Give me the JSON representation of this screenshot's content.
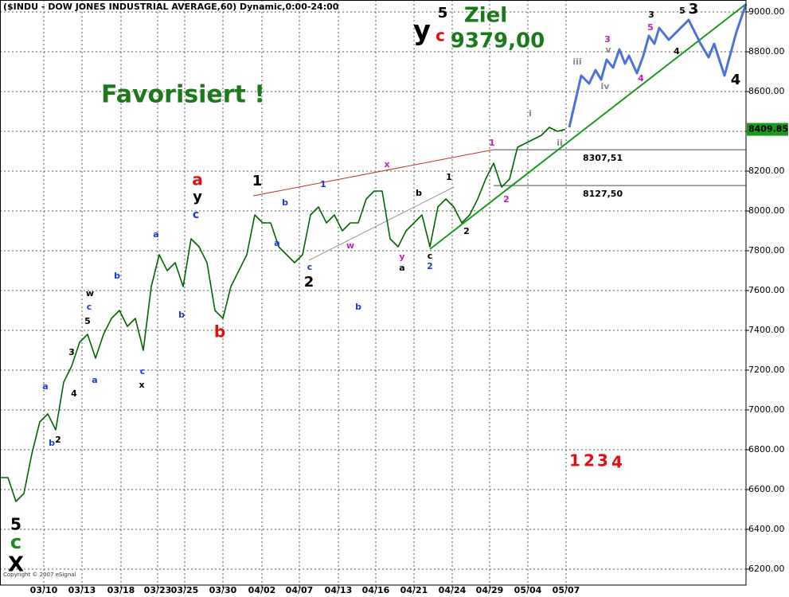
{
  "chart_data": {
    "type": "line",
    "title": "($INDU - DOW JONES INDUSTRIAL AVERAGE,60) Dynamic,0:00-24:00",
    "copyright": "Copyright © 2007 eSignal",
    "xlim": [
      0,
      93.7
    ],
    "ylim": [
      6120,
      9060
    ],
    "xticks": [
      {
        "value": 5.5,
        "label": "03/10"
      },
      {
        "value": 10.3,
        "label": "03/13"
      },
      {
        "value": 15.2,
        "label": "03/18"
      },
      {
        "value": 19.8,
        "label": "03/23"
      },
      {
        "value": 23.2,
        "label": "03/25"
      },
      {
        "value": 28,
        "label": "03/30"
      },
      {
        "value": 32.9,
        "label": "04/02"
      },
      {
        "value": 37.6,
        "label": "04/07"
      },
      {
        "value": 42.5,
        "label": "04/13"
      },
      {
        "value": 47.2,
        "label": "04/16"
      },
      {
        "value": 52,
        "label": "04/21"
      },
      {
        "value": 56.8,
        "label": "04/24"
      },
      {
        "value": 61.5,
        "label": "04/29"
      },
      {
        "value": 66.3,
        "label": "05/04"
      },
      {
        "value": 71.1,
        "label": "05/07"
      }
    ],
    "yticks": [
      {
        "value": 6200,
        "label": "6200.00"
      },
      {
        "value": 6400,
        "label": "6400.00"
      },
      {
        "value": 6600,
        "label": "6600.00"
      },
      {
        "value": 6800,
        "label": "6800.00"
      },
      {
        "value": 7000,
        "label": "7000.00"
      },
      {
        "value": 7200,
        "label": "7200.00"
      },
      {
        "value": 7400,
        "label": "7400.00"
      },
      {
        "value": 7600,
        "label": "7600.00"
      },
      {
        "value": 7800,
        "label": "7800.00"
      },
      {
        "value": 8000,
        "label": "8000.00"
      },
      {
        "value": 8200,
        "label": "8200.00"
      },
      {
        "value": 8400,
        "label": "8400.00"
      },
      {
        "value": 8600,
        "label": "8600.00"
      },
      {
        "value": 8800,
        "label": "8800.00"
      },
      {
        "value": 9000,
        "label": "9000.00"
      }
    ],
    "grid": true,
    "series": [
      {
        "color": "#006400",
        "values": [
          6660,
          6660,
          6540,
          6580,
          6780,
          6940,
          6980,
          6900,
          7140,
          7220,
          7340,
          7380,
          7260,
          7380,
          7460,
          7500,
          7420,
          7460,
          7300,
          7620,
          7780,
          7700,
          7740,
          7620,
          7860,
          7820,
          7740,
          7500,
          7460,
          7620,
          7700,
          7780,
          7980,
          7940,
          7940,
          7820,
          7780,
          7740,
          7780,
          7980,
          8020,
          7940,
          7980,
          7900,
          7940,
          7940,
          8060,
          8100,
          8100,
          7860,
          7820,
          7900,
          7940,
          7980,
          7820,
          8020,
          8060,
          8020,
          7940,
          7980,
          8060,
          8160,
          8240,
          8120,
          8160,
          8320,
          8340,
          8360,
          8380,
          8420,
          8400,
          8409.85
        ]
      },
      {
        "color": "#4a72d8",
        "x": [
          71.5,
          73,
          74,
          74.8,
          75.5,
          76.2,
          77,
          77.8,
          78.5,
          79,
          80,
          80.8,
          81.5,
          82.2,
          82.8,
          84,
          85.5,
          86.5,
          88,
          89,
          89.7,
          91,
          92.5,
          93.7
        ],
        "values": [
          8420,
          8680,
          8640,
          8708,
          8660,
          8760,
          8720,
          8812,
          8740,
          8780,
          8692,
          8780,
          8880,
          8840,
          8920,
          8860,
          8920,
          8960,
          8840,
          8772,
          8840,
          8680,
          8900,
          9040
        ]
      }
    ],
    "levels": [
      {
        "value": 8307.51,
        "label": "8307,51",
        "from": 62
      },
      {
        "value": 8127.5,
        "label": "8127,50",
        "from": 62
      }
    ],
    "trendlines": [
      {
        "color": "#1a9a1a",
        "x": [
          54,
          93.7
        ],
        "y": [
          7808,
          9040
        ]
      },
      {
        "color": "#c03030",
        "x": [
          31.8,
          62
        ],
        "y": [
          8076,
          8308
        ]
      },
      {
        "color": "#999999",
        "x": [
          38.8,
          57
        ],
        "y": [
          7752,
          8120
        ]
      }
    ],
    "annotations": [
      {
        "text": "Favorisiert !",
        "x": 23,
        "y": 8580,
        "color": "#1a7a1a"
      },
      {
        "text": "Ziel",
        "x": 61,
        "y": 8980,
        "color": "#1a7a1a"
      },
      {
        "text": "9379,00",
        "x": 62.5,
        "y": 8852,
        "color": "#1a7a1a"
      },
      {
        "text": "y",
        "x": 53,
        "y": 8900,
        "color": "#000000"
      },
      {
        "text": "5",
        "x": 55.6,
        "y": 8992,
        "color": "#000000"
      },
      {
        "text": "c",
        "x": 55.3,
        "y": 8876,
        "color": "#e01010"
      },
      {
        "text": "5",
        "x": 2,
        "y": 6420,
        "color": "#000000"
      },
      {
        "text": "c",
        "x": 2,
        "y": 6332,
        "color": "#1a8a1a"
      },
      {
        "text": "X",
        "x": 2,
        "y": 6220,
        "color": "#000000"
      },
      {
        "text": "a",
        "x": 24.8,
        "y": 8152,
        "color": "#e01010"
      },
      {
        "text": "y",
        "x": 24.8,
        "y": 8068,
        "color": "#000000"
      },
      {
        "text": "c",
        "x": 24.6,
        "y": 7980,
        "color": "#1a3ad8"
      },
      {
        "text": "b",
        "x": 27.6,
        "y": 7388,
        "color": "#e01010"
      },
      {
        "text": "1",
        "x": 32.3,
        "y": 8148,
        "color": "#000000"
      },
      {
        "text": "2",
        "x": 38.8,
        "y": 7640,
        "color": "#000000"
      },
      {
        "text": "3",
        "x": 87.1,
        "y": 9012,
        "color": "#000000"
      },
      {
        "text": "4",
        "x": 92.4,
        "y": 8656,
        "color": "#000000"
      },
      {
        "text": "1",
        "x": 72.2,
        "y": 6740,
        "color": "#e01010"
      },
      {
        "text": "2",
        "x": 74,
        "y": 6740,
        "color": "#e01010"
      },
      {
        "text": "3",
        "x": 75.7,
        "y": 6740,
        "color": "#e01010"
      },
      {
        "text": "4",
        "x": 77.5,
        "y": 6732,
        "color": "#e01010"
      },
      {
        "text": "w",
        "x": 11.3,
        "y": 7584,
        "color": "#000000"
      },
      {
        "text": "c",
        "x": 11.2,
        "y": 7516,
        "color": "#1a3ad8"
      },
      {
        "text": "5",
        "x": 11,
        "y": 7444,
        "color": "#000000"
      },
      {
        "text": "x",
        "x": 17.8,
        "y": 7124,
        "color": "#000000"
      },
      {
        "text": "c",
        "x": 17.9,
        "y": 7192,
        "color": "#1a3ad8"
      },
      {
        "text": "b",
        "x": 14.7,
        "y": 7672,
        "color": "#1a3ad8"
      },
      {
        "text": "a",
        "x": 5.7,
        "y": 7116,
        "color": "#1a3ad8"
      },
      {
        "text": "b",
        "x": 6.5,
        "y": 6832,
        "color": "#1a3ad8"
      },
      {
        "text": "2",
        "x": 7.3,
        "y": 6848,
        "color": "#000000"
      },
      {
        "text": "3",
        "x": 9,
        "y": 7288,
        "color": "#000000"
      },
      {
        "text": "4",
        "x": 9.3,
        "y": 7080,
        "color": "#000000"
      },
      {
        "text": "a",
        "x": 11.9,
        "y": 7148,
        "color": "#1a3ad8"
      },
      {
        "text": "a",
        "x": 19.6,
        "y": 7880,
        "color": "#1a3ad8"
      },
      {
        "text": "b",
        "x": 22.8,
        "y": 7476,
        "color": "#1a3ad8"
      },
      {
        "text": "b",
        "x": 35.8,
        "y": 8040,
        "color": "#1a3ad8"
      },
      {
        "text": "a",
        "x": 34.8,
        "y": 7836,
        "color": "#1a3ad8"
      },
      {
        "text": "c",
        "x": 38.9,
        "y": 7716,
        "color": "#1a3ad8"
      },
      {
        "text": "1",
        "x": 40.6,
        "y": 8132,
        "color": "#1a3ad8"
      },
      {
        "text": "w",
        "x": 44,
        "y": 7824,
        "color": "#c020c0"
      },
      {
        "text": "x",
        "x": 48.6,
        "y": 8232,
        "color": "#c020c0"
      },
      {
        "text": "y",
        "x": 50.5,
        "y": 7768,
        "color": "#c020c0"
      },
      {
        "text": "a",
        "x": 50.5,
        "y": 7712,
        "color": "#000000"
      },
      {
        "text": "2",
        "x": 54,
        "y": 7720,
        "color": "#1a3ad8"
      },
      {
        "text": "c",
        "x": 54,
        "y": 7772,
        "color": "#000000"
      },
      {
        "text": "b",
        "x": 52.6,
        "y": 8088,
        "color": "#000000"
      },
      {
        "text": "1",
        "x": 56.4,
        "y": 8168,
        "color": "#000000"
      },
      {
        "text": "2",
        "x": 58.6,
        "y": 7896,
        "color": "#000000"
      },
      {
        "text": "b",
        "x": 45,
        "y": 7516,
        "color": "#1a3ad8"
      },
      {
        "text": "1",
        "x": 61.8,
        "y": 8340,
        "color": "#c020c0"
      },
      {
        "text": "2",
        "x": 63.6,
        "y": 8056,
        "color": "#c020c0"
      },
      {
        "text": "i",
        "x": 66.6,
        "y": 8488,
        "color": "#888888"
      },
      {
        "text": "ii",
        "x": 70.3,
        "y": 8340,
        "color": "#888888"
      },
      {
        "text": "iii",
        "x": 72.5,
        "y": 8748,
        "color": "#888888"
      },
      {
        "text": "iv",
        "x": 76,
        "y": 8624,
        "color": "#888888"
      },
      {
        "text": "v",
        "x": 76.4,
        "y": 8808,
        "color": "#888888"
      },
      {
        "text": "3",
        "x": 76.3,
        "y": 8860,
        "color": "#c020c0"
      },
      {
        "text": "5",
        "x": 81.7,
        "y": 8920,
        "color": "#c020c0"
      },
      {
        "text": "4",
        "x": 80.5,
        "y": 8664,
        "color": "#c020c0"
      },
      {
        "text": "3",
        "x": 81.8,
        "y": 8984,
        "color": "#000000"
      },
      {
        "text": "4",
        "x": 85,
        "y": 8800,
        "color": "#000000"
      },
      {
        "text": "5",
        "x": 85.7,
        "y": 9004,
        "color": "#000000"
      }
    ]
  }
}
